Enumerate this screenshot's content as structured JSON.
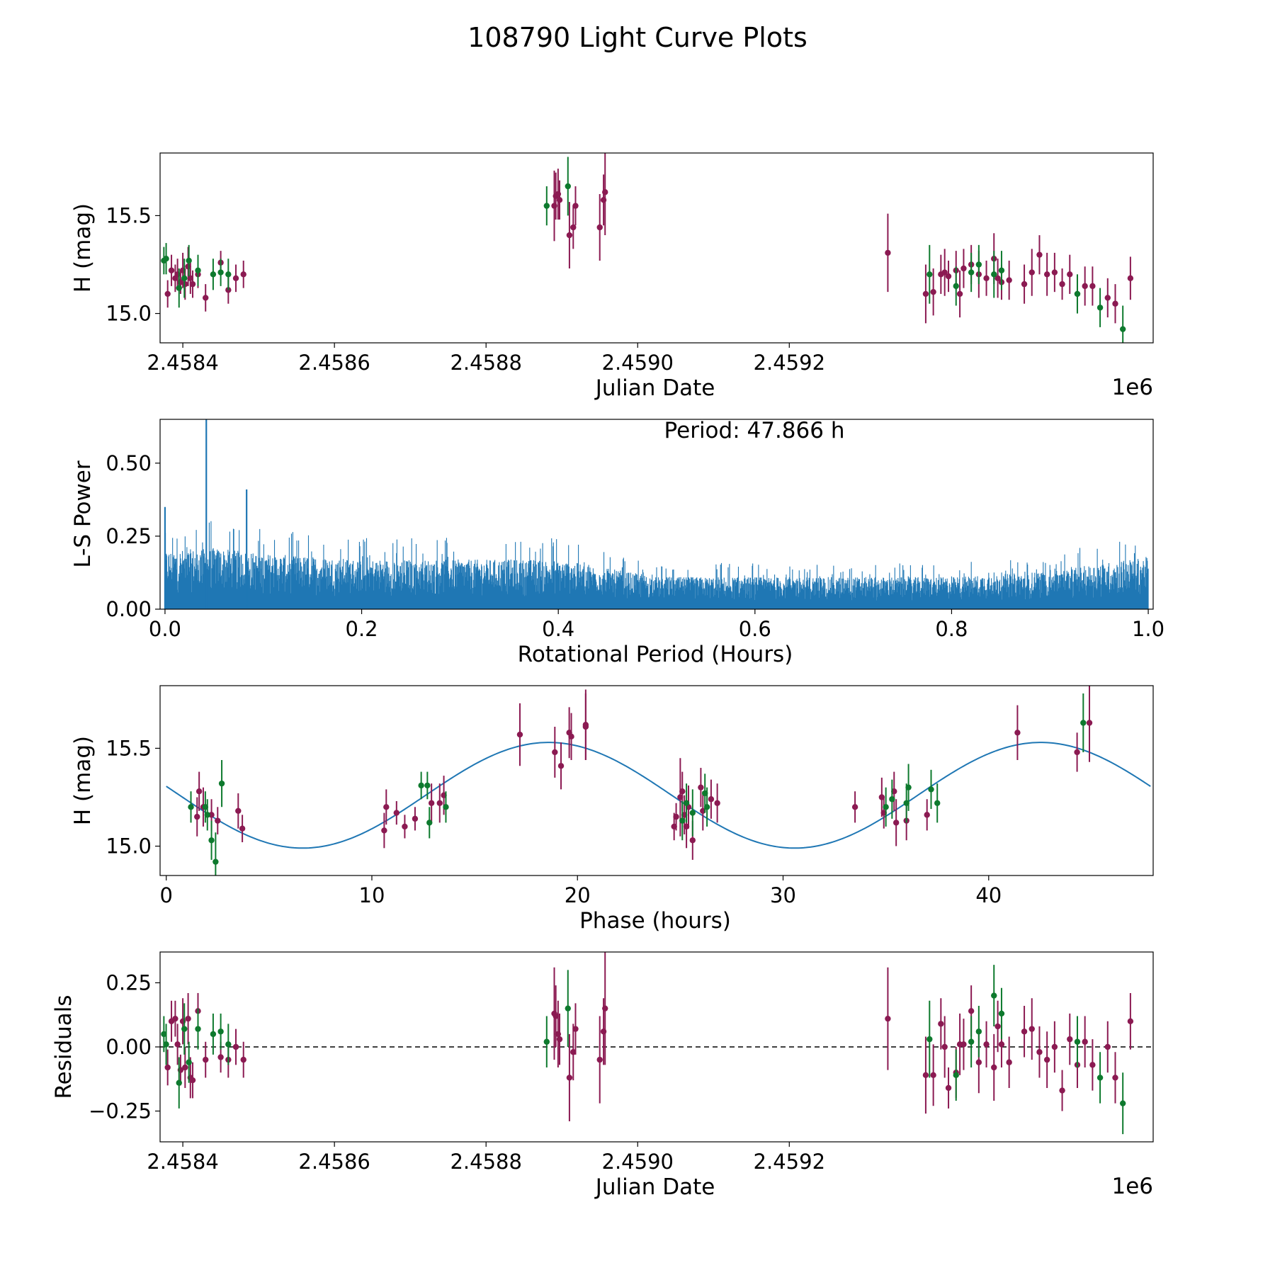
{
  "title": "108790 Light Curve Plots",
  "colors": {
    "magenta": "#8b1a52",
    "green": "#0e7a2e",
    "fit": "#1f77b4",
    "periodogram": "#1f77b4"
  },
  "chart_data": [
    {
      "type": "scatter",
      "name": "light-curve",
      "title": "",
      "xlabel": "Julian Date",
      "ylabel": "H (mag)",
      "offset_label": "1e6",
      "xlim": [
        2.45837,
        2.45968
      ],
      "ylim": [
        14.85,
        15.82
      ],
      "xtick_values": [
        2.4584,
        2.4586,
        2.4588,
        2.459,
        2.4592
      ],
      "xtick_labels": [
        "2.4584",
        "2.4586",
        "2.4588",
        "2.4590",
        "2.4592"
      ],
      "ytick_values": [
        15.0,
        15.5
      ],
      "ytick_labels": [
        "15.0",
        "15.5"
      ],
      "series": [
        {
          "name": "magenta",
          "x": [
            2.45838,
            2.458385,
            2.45839,
            2.458393,
            2.458397,
            2.4584,
            2.458403,
            2.458407,
            2.45841,
            2.458413,
            2.45842,
            2.45843,
            2.45845,
            2.45846,
            2.45847,
            2.45848,
            2.45889,
            2.458892,
            2.458895,
            2.458897,
            2.45891,
            2.458915,
            2.458918,
            2.45895,
            2.458955,
            2.458957,
            2.45933,
            2.45938,
            2.45939,
            2.4594,
            2.459405,
            2.45941,
            2.45942,
            2.459425,
            2.45943,
            2.45944,
            2.45945,
            2.45946,
            2.45947,
            2.459475,
            2.45948,
            2.45949,
            2.45951,
            2.45952,
            2.45953,
            2.45954,
            2.45955,
            2.45956,
            2.45957,
            2.45958,
            2.45959,
            2.4596,
            2.45962,
            2.45963,
            2.45965
          ],
          "y": [
            15.1,
            15.22,
            15.18,
            15.2,
            15.16,
            15.22,
            15.15,
            15.24,
            15.18,
            15.15,
            15.2,
            15.08,
            15.26,
            15.12,
            15.18,
            15.2,
            15.55,
            15.6,
            15.61,
            15.58,
            15.4,
            15.44,
            15.55,
            15.44,
            15.58,
            15.62,
            15.31,
            15.1,
            15.11,
            15.2,
            15.21,
            15.19,
            15.22,
            15.1,
            15.23,
            15.25,
            15.2,
            15.18,
            15.28,
            15.18,
            15.16,
            15.17,
            15.15,
            15.21,
            15.3,
            15.2,
            15.21,
            15.15,
            15.2,
            15.1,
            15.14,
            15.14,
            15.08,
            15.05,
            15.18
          ],
          "err": [
            0.07,
            0.08,
            0.07,
            0.08,
            0.06,
            0.09,
            0.08,
            0.1,
            0.08,
            0.07,
            0.07,
            0.07,
            0.06,
            0.07,
            0.07,
            0.07,
            0.18,
            0.12,
            0.13,
            0.1,
            0.17,
            0.11,
            0.1,
            0.17,
            0.13,
            0.22,
            0.2,
            0.15,
            0.12,
            0.1,
            0.12,
            0.08,
            0.1,
            0.12,
            0.1,
            0.1,
            0.12,
            0.09,
            0.13,
            0.1,
            0.09,
            0.1,
            0.1,
            0.12,
            0.1,
            0.11,
            0.1,
            0.08,
            0.1,
            0.09,
            0.1,
            0.1,
            0.1,
            0.1,
            0.11
          ]
        },
        {
          "name": "green",
          "x": [
            2.458375,
            2.458378,
            2.458395,
            2.458402,
            2.458408,
            2.45842,
            2.45844,
            2.45845,
            2.45846,
            2.45888,
            2.458908,
            2.459385,
            2.45942,
            2.45944,
            2.45945,
            2.45947,
            2.45948,
            2.45958,
            2.45961,
            2.45964
          ],
          "y": [
            15.27,
            15.28,
            15.13,
            15.18,
            15.27,
            15.22,
            15.2,
            15.21,
            15.2,
            15.55,
            15.65,
            15.2,
            15.14,
            15.21,
            15.25,
            15.2,
            15.22,
            15.1,
            15.03,
            14.92
          ],
          "err": [
            0.07,
            0.08,
            0.1,
            0.1,
            0.08,
            0.08,
            0.08,
            0.07,
            0.08,
            0.1,
            0.15,
            0.15,
            0.1,
            0.1,
            0.1,
            0.12,
            0.1,
            0.1,
            0.1,
            0.12
          ]
        }
      ]
    },
    {
      "type": "line",
      "name": "periodogram",
      "title": "",
      "xlabel": "Rotational Period (Hours)",
      "ylabel": "L-S Power",
      "annotation": "Period: 47.866 h",
      "xlim": [
        -0.005,
        1.005
      ],
      "ylim": [
        0.0,
        0.65
      ],
      "xtick_values": [
        0.0,
        0.2,
        0.4,
        0.6,
        0.8,
        1.0
      ],
      "xtick_labels": [
        "0.0",
        "0.2",
        "0.4",
        "0.6",
        "0.8",
        "1.0"
      ],
      "ytick_values": [
        0.0,
        0.25,
        0.5
      ],
      "ytick_labels": [
        "0.00",
        "0.25",
        "0.50"
      ],
      "peaks": {
        "x": [
          0.0,
          0.042,
          0.083
        ],
        "power": [
          0.35,
          0.65,
          0.41
        ]
      },
      "envelope": {
        "x": [
          0.0,
          0.05,
          0.1,
          0.2,
          0.3,
          0.4,
          0.5,
          0.6,
          0.7,
          0.8,
          0.9,
          1.0
        ],
        "power": [
          0.2,
          0.21,
          0.19,
          0.17,
          0.17,
          0.17,
          0.11,
          0.11,
          0.11,
          0.11,
          0.13,
          0.18
        ]
      }
    },
    {
      "type": "scatter",
      "name": "phased-curve",
      "title": "",
      "xlabel": "Phase (hours)",
      "ylabel": "H (mag)",
      "xlim": [
        -0.3,
        48.0
      ],
      "ylim": [
        14.85,
        15.82
      ],
      "xtick_values": [
        0,
        10,
        20,
        30,
        40
      ],
      "xtick_labels": [
        "0",
        "10",
        "20",
        "30",
        "40"
      ],
      "ytick_values": [
        15.0,
        15.5
      ],
      "ytick_labels": [
        "15.0",
        "15.5"
      ],
      "fit": {
        "mean": 15.26,
        "amplitude": 0.27,
        "period": 23.933,
        "peak_phase": 18.6
      },
      "series": [
        {
          "name": "magenta",
          "x": [
            1.5,
            1.6,
            1.8,
            2.2,
            2.5,
            3.5,
            3.7,
            10.6,
            10.7,
            11.2,
            11.6,
            12.1,
            12.9,
            13.3,
            13.5,
            17.2,
            18.9,
            19.2,
            19.6,
            19.7,
            20.4,
            20.4,
            24.7,
            24.8,
            25.0,
            25.1,
            25.2,
            25.3,
            25.4,
            25.6,
            26.0,
            26.1,
            26.5,
            26.8,
            33.5,
            34.8,
            34.9,
            35.4,
            35.5,
            36.0,
            37.0,
            41.4,
            44.3,
            44.9
          ],
          "y": [
            15.15,
            15.28,
            15.2,
            15.16,
            15.13,
            15.18,
            15.09,
            15.08,
            15.2,
            15.17,
            15.1,
            15.14,
            15.22,
            15.22,
            15.26,
            15.57,
            15.48,
            15.41,
            15.58,
            15.56,
            15.61,
            15.62,
            15.1,
            15.15,
            15.25,
            15.28,
            15.16,
            15.1,
            15.2,
            15.03,
            15.3,
            15.18,
            15.24,
            15.22,
            15.2,
            15.25,
            15.17,
            15.28,
            15.12,
            15.13,
            15.16,
            15.58,
            15.48,
            15.63
          ],
          "err": [
            0.1,
            0.1,
            0.1,
            0.08,
            0.07,
            0.09,
            0.07,
            0.09,
            0.09,
            0.06,
            0.06,
            0.06,
            0.1,
            0.1,
            0.1,
            0.16,
            0.13,
            0.12,
            0.13,
            0.12,
            0.17,
            0.18,
            0.07,
            0.07,
            0.2,
            0.1,
            0.1,
            0.11,
            0.11,
            0.1,
            0.1,
            0.1,
            0.1,
            0.1,
            0.08,
            0.1,
            0.08,
            0.1,
            0.12,
            0.1,
            0.08,
            0.14,
            0.1,
            0.2
          ]
        },
        {
          "name": "green",
          "x": [
            1.2,
            1.9,
            2.0,
            2.2,
            2.4,
            2.7,
            12.4,
            12.7,
            12.8,
            13.6,
            25.1,
            25.3,
            25.6,
            26.2,
            26.3,
            35.0,
            35.3,
            36.0,
            36.1,
            37.2,
            37.5,
            44.6
          ],
          "y": [
            15.2,
            15.2,
            15.16,
            15.03,
            14.92,
            15.32,
            15.31,
            15.31,
            15.12,
            15.2,
            15.13,
            15.22,
            15.17,
            15.27,
            15.2,
            15.2,
            15.24,
            15.22,
            15.3,
            15.29,
            15.22,
            15.63
          ],
          "err": [
            0.08,
            0.08,
            0.08,
            0.1,
            0.15,
            0.12,
            0.07,
            0.07,
            0.08,
            0.08,
            0.1,
            0.1,
            0.12,
            0.1,
            0.1,
            0.1,
            0.1,
            0.1,
            0.12,
            0.1,
            0.1,
            0.15
          ]
        }
      ]
    },
    {
      "type": "scatter",
      "name": "residuals",
      "title": "",
      "xlabel": "Julian Date",
      "ylabel": "Residuals",
      "offset_label": "1e6",
      "xlim": [
        2.45837,
        2.45968
      ],
      "ylim": [
        -0.37,
        0.37
      ],
      "reference_line": 0.0,
      "xtick_values": [
        2.4584,
        2.4586,
        2.4588,
        2.459,
        2.4592
      ],
      "xtick_labels": [
        "2.4584",
        "2.4586",
        "2.4588",
        "2.4590",
        "2.4592"
      ],
      "ytick_values": [
        -0.25,
        0.0,
        0.25
      ],
      "ytick_labels": [
        "−0.25",
        "0.00",
        "0.25"
      ],
      "series": [
        {
          "name": "magenta",
          "x": [
            2.45838,
            2.458385,
            2.45839,
            2.458393,
            2.458397,
            2.4584,
            2.458403,
            2.458407,
            2.45841,
            2.458413,
            2.45842,
            2.45843,
            2.45845,
            2.45846,
            2.45847,
            2.45848,
            2.45889,
            2.458892,
            2.458895,
            2.458897,
            2.45891,
            2.458915,
            2.458918,
            2.45895,
            2.458955,
            2.458957,
            2.45933,
            2.45938,
            2.45939,
            2.4594,
            2.459405,
            2.45941,
            2.45942,
            2.459425,
            2.45943,
            2.45944,
            2.45945,
            2.45946,
            2.45947,
            2.459475,
            2.45948,
            2.45949,
            2.45951,
            2.45952,
            2.45953,
            2.45954,
            2.45955,
            2.45956,
            2.45957,
            2.45958,
            2.45959,
            2.4596,
            2.45962,
            2.45963,
            2.45965
          ],
          "y": [
            -0.08,
            0.1,
            0.11,
            0.01,
            -0.09,
            0.1,
            -0.08,
            0.11,
            -0.12,
            -0.13,
            0.14,
            -0.05,
            -0.04,
            -0.05,
            0.0,
            -0.05,
            0.13,
            0.12,
            0.05,
            0.03,
            -0.12,
            -0.02,
            0.07,
            -0.05,
            0.06,
            0.15,
            0.11,
            -0.11,
            -0.11,
            0.09,
            0.0,
            -0.16,
            -0.1,
            0.01,
            0.01,
            0.14,
            -0.06,
            0.01,
            -0.08,
            0.08,
            0.01,
            -0.06,
            0.06,
            0.07,
            -0.02,
            -0.05,
            0.0,
            -0.17,
            0.03,
            -0.07,
            0.02,
            -0.07,
            0.0,
            -0.12,
            0.1
          ],
          "err": [
            0.07,
            0.08,
            0.07,
            0.08,
            0.06,
            0.09,
            0.08,
            0.1,
            0.08,
            0.07,
            0.07,
            0.07,
            0.06,
            0.07,
            0.07,
            0.07,
            0.18,
            0.12,
            0.13,
            0.1,
            0.17,
            0.11,
            0.1,
            0.17,
            0.13,
            0.22,
            0.2,
            0.15,
            0.12,
            0.1,
            0.12,
            0.08,
            0.1,
            0.12,
            0.1,
            0.1,
            0.12,
            0.09,
            0.13,
            0.1,
            0.09,
            0.1,
            0.1,
            0.12,
            0.1,
            0.11,
            0.1,
            0.08,
            0.1,
            0.09,
            0.1,
            0.1,
            0.1,
            0.1,
            0.11
          ]
        },
        {
          "name": "green",
          "x": [
            2.458375,
            2.458378,
            2.458395,
            2.458402,
            2.458408,
            2.45842,
            2.45844,
            2.45845,
            2.45846,
            2.45888,
            2.458908,
            2.459385,
            2.45942,
            2.45944,
            2.45945,
            2.45947,
            2.45948,
            2.45958,
            2.45961,
            2.45964
          ],
          "y": [
            0.05,
            0.01,
            -0.14,
            0.07,
            -0.06,
            0.07,
            0.05,
            0.06,
            0.01,
            0.02,
            0.15,
            0.03,
            -0.11,
            0.02,
            0.06,
            0.2,
            0.13,
            0.02,
            -0.12,
            -0.22
          ],
          "err": [
            0.07,
            0.08,
            0.1,
            0.1,
            0.08,
            0.08,
            0.08,
            0.07,
            0.08,
            0.1,
            0.15,
            0.15,
            0.1,
            0.1,
            0.1,
            0.12,
            0.1,
            0.1,
            0.1,
            0.12
          ]
        }
      ]
    }
  ]
}
